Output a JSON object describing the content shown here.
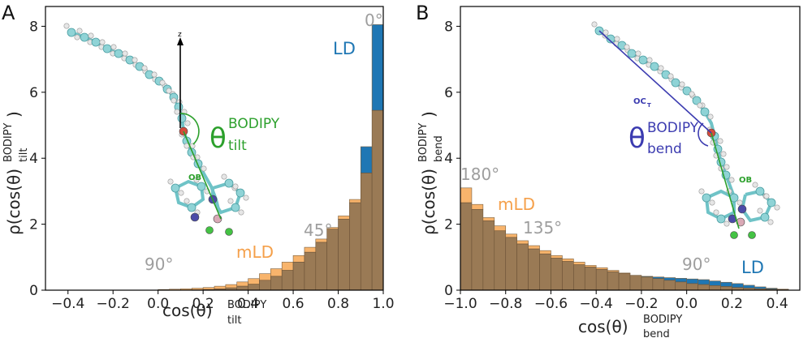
{
  "colors": {
    "mLD": "#f8b46c",
    "LD": "#1f77b4",
    "overlap": "#9a7a55",
    "angle_gray": "#9e9e9e",
    "theta_green": "#2ca02c",
    "theta_blue": "#3b3bb0",
    "carbon": "#8fd3d6",
    "hydrogen": "#e6e6e6",
    "nitrogen": "#4b4ba8",
    "boron": "#d9a9b6",
    "fluorine": "#44c244",
    "oxygen": "#d64b3c"
  },
  "panels": [
    {
      "letter": "A",
      "xlabel_main": "cos(θ)",
      "xlabel_sub": "tilt",
      "xlabel_sup": "BODIPY",
      "ylabel_main": "ρ(cos(θ)",
      "ylabel_sub": "tilt",
      "ylabel_sup": "BODIPY",
      "ylabel_close": ")",
      "angle_labels": [
        "0°",
        "45°",
        "90°"
      ],
      "series_labels": {
        "LD": "LD",
        "mLD": "mLD"
      },
      "theta_text": "θ",
      "theta_sub": "tilt",
      "theta_sup": "BODIPY",
      "molecule_labels": {
        "z": "z",
        "ob": "OB"
      }
    },
    {
      "letter": "B",
      "xlabel_main": "cos(θ)",
      "xlabel_sub": "bend",
      "xlabel_sup": "BODIPY",
      "ylabel_main": "ρ(cos(θ)",
      "ylabel_sub": "bend",
      "ylabel_sup": "BODIPY",
      "ylabel_close": ")",
      "angle_labels": [
        "180°",
        "135°",
        "90°"
      ],
      "series_labels": {
        "LD": "LD",
        "mLD": "mLD"
      },
      "theta_text": "θ",
      "theta_sub": "bend",
      "theta_sup": "BODIPY",
      "molecule_labels": {
        "oc": "OC",
        "oc_sub": "T",
        "ob": "OB"
      }
    }
  ],
  "chart_data": [
    {
      "type": "bar",
      "panel": "A",
      "xlim": [
        -0.5,
        1.0
      ],
      "ylim": [
        0,
        8.6
      ],
      "xticks": [
        "−0.4",
        "−0.2",
        "0.0",
        "0.2",
        "0.4",
        "0.6",
        "0.8",
        "1.0"
      ],
      "xtick_values": [
        -0.4,
        -0.2,
        0.0,
        0.2,
        0.4,
        0.6,
        0.8,
        1.0
      ],
      "yticks": [
        "0",
        "2",
        "4",
        "6",
        "8"
      ],
      "ytick_values": [
        0,
        2,
        4,
        6,
        8
      ],
      "bin_edges": [
        0.0,
        0.05,
        0.1,
        0.15,
        0.2,
        0.25,
        0.3,
        0.35,
        0.4,
        0.45,
        0.5,
        0.55,
        0.6,
        0.65,
        0.7,
        0.75,
        0.8,
        0.85,
        0.9,
        0.95,
        1.0
      ],
      "series": [
        {
          "name": "mLD",
          "values": [
            0.02,
            0.03,
            0.04,
            0.06,
            0.08,
            0.12,
            0.17,
            0.25,
            0.35,
            0.5,
            0.65,
            0.85,
            1.05,
            1.3,
            1.55,
            1.9,
            2.25,
            2.75,
            3.55,
            5.45
          ]
        },
        {
          "name": "LD",
          "values": [
            0.0,
            0.0,
            0.0,
            0.01,
            0.02,
            0.04,
            0.07,
            0.12,
            0.18,
            0.3,
            0.42,
            0.6,
            0.85,
            1.15,
            1.45,
            1.85,
            2.15,
            2.65,
            4.35,
            8.05
          ]
        }
      ]
    },
    {
      "type": "bar",
      "panel": "B",
      "xlim": [
        -1.0,
        0.5
      ],
      "ylim": [
        0,
        8.6
      ],
      "xticks": [
        "−1.0",
        "−0.8",
        "−0.6",
        "−0.4",
        "−0.2",
        "0.0",
        "0.2",
        "0.4"
      ],
      "xtick_values": [
        -1.0,
        -0.8,
        -0.6,
        -0.4,
        -0.2,
        0.0,
        0.2,
        0.4
      ],
      "yticks": [
        "0",
        "2",
        "4",
        "6",
        "8"
      ],
      "ytick_values": [
        0,
        2,
        4,
        6,
        8
      ],
      "bin_edges": [
        -1.0,
        -0.95,
        -0.9,
        -0.85,
        -0.8,
        -0.75,
        -0.7,
        -0.65,
        -0.6,
        -0.55,
        -0.5,
        -0.45,
        -0.4,
        -0.35,
        -0.3,
        -0.25,
        -0.2,
        -0.15,
        -0.1,
        -0.05,
        0.0,
        0.05,
        0.1,
        0.15,
        0.2,
        0.25,
        0.3,
        0.35,
        0.4,
        0.45
      ],
      "series": [
        {
          "name": "mLD",
          "values": [
            3.1,
            2.6,
            2.2,
            1.95,
            1.7,
            1.5,
            1.35,
            1.2,
            1.05,
            0.95,
            0.85,
            0.75,
            0.68,
            0.6,
            0.52,
            0.45,
            0.4,
            0.35,
            0.3,
            0.25,
            0.2,
            0.17,
            0.14,
            0.11,
            0.08,
            0.06,
            0.04,
            0.03,
            0.02
          ]
        },
        {
          "name": "LD",
          "values": [
            2.65,
            2.45,
            2.1,
            1.8,
            1.6,
            1.4,
            1.25,
            1.1,
            0.97,
            0.87,
            0.77,
            0.7,
            0.63,
            0.56,
            0.5,
            0.45,
            0.42,
            0.4,
            0.38,
            0.36,
            0.34,
            0.32,
            0.28,
            0.24,
            0.2,
            0.15,
            0.1,
            0.06,
            0.03
          ]
        }
      ]
    }
  ]
}
